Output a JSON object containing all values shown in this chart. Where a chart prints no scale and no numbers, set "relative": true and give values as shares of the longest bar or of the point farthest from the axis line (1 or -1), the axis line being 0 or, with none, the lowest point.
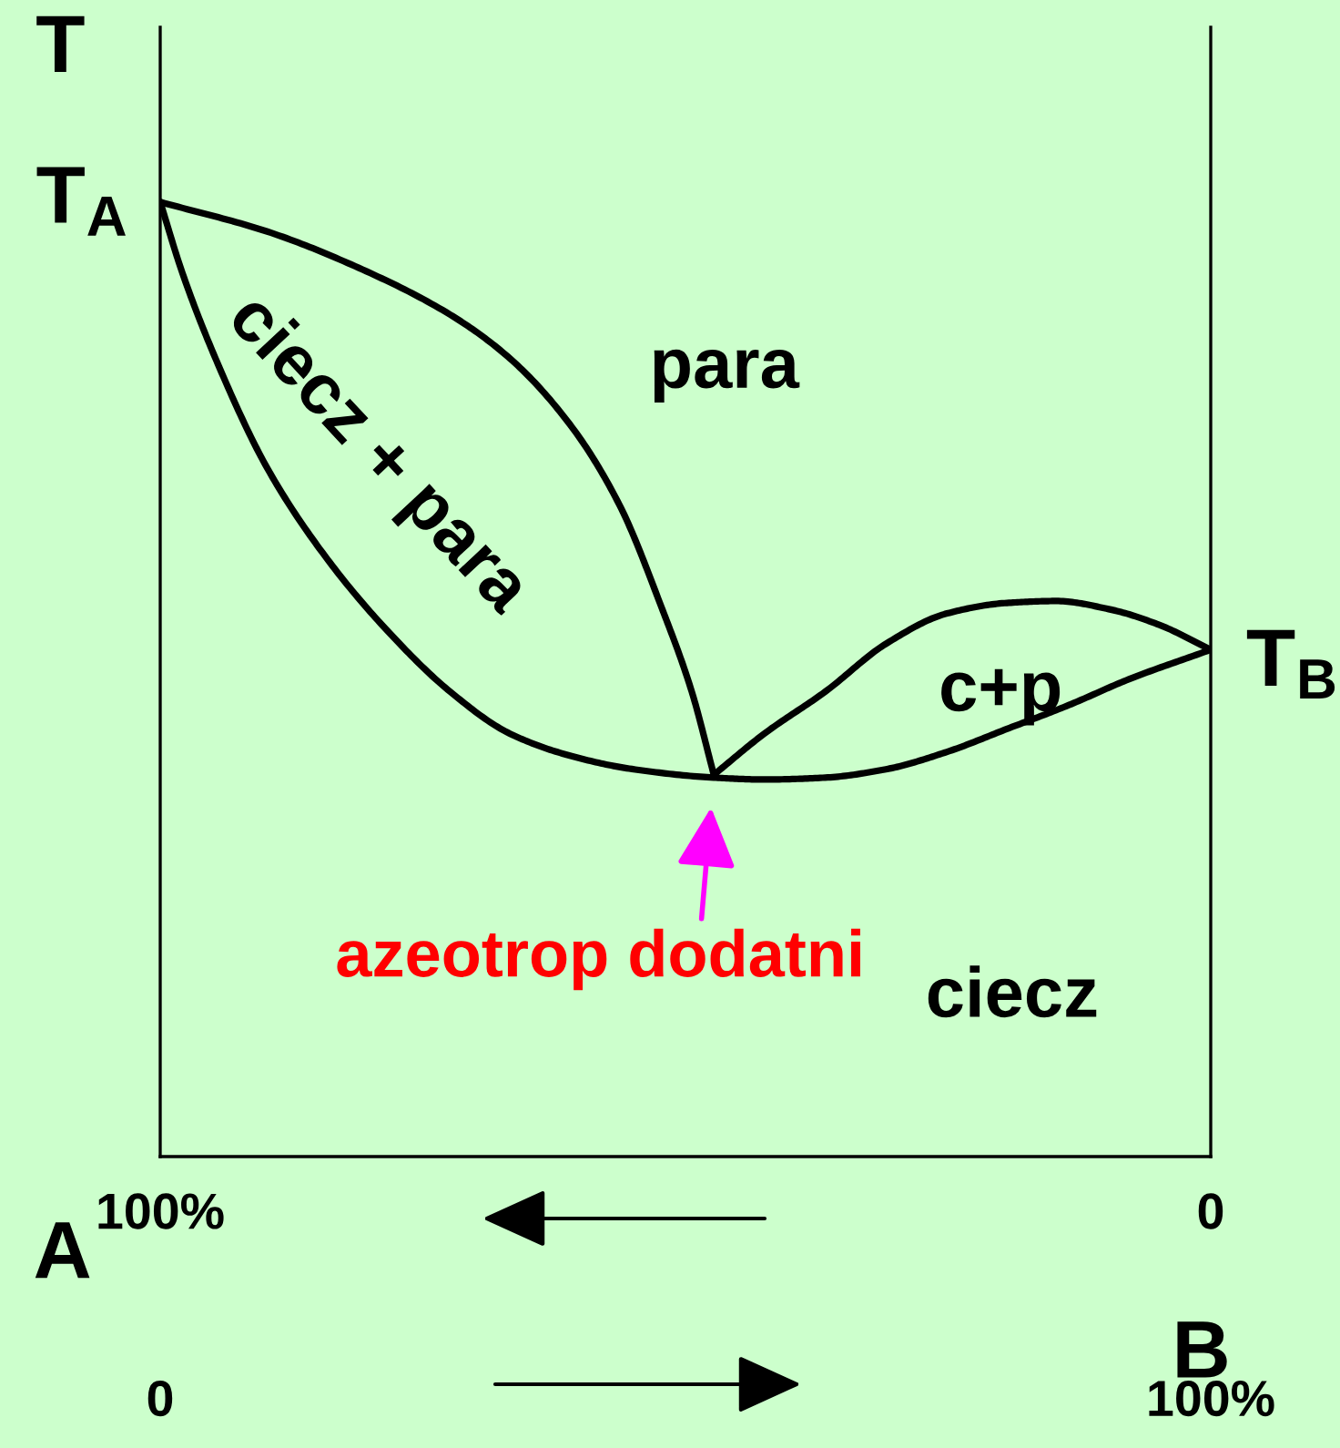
{
  "chart_data": {
    "type": "line",
    "relative": true,
    "ylabel": "T",
    "xlabel": "B",
    "x2label": "A",
    "xlim": [
      0,
      100
    ],
    "xticks": [
      0,
      {
        "value": 100,
        "label": "100%"
      }
    ],
    "x2lim": [
      100,
      0
    ],
    "x2ticks": [
      {
        "value": 100,
        "label": "100%"
      },
      0
    ],
    "series": [
      {
        "color": "#000000",
        "x": [
          0,
          10.2,
          18.9,
          27.6,
          33.3,
          39.0,
          43.7,
          47.7,
          50.6,
          52.7
        ],
        "values": [
          1.0,
          0.969,
          0.931,
          0.882,
          0.836,
          0.767,
          0.683,
          0.576,
          0.487,
          0.4
        ]
      },
      {
        "color": "#000000",
        "x": [
          52.7,
          57.5,
          63.3,
          69.2,
          74.9,
          80.6,
          85.3,
          90.5,
          95.1,
          100
        ],
        "values": [
          0.4,
          0.443,
          0.487,
          0.538,
          0.569,
          0.58,
          0.582,
          0.573,
          0.557,
          0.531
        ]
      },
      {
        "color": "#000000",
        "x": [
          0,
          2.1,
          5.5,
          10.2,
          15.9,
          21.7,
          27.6,
          33.3,
          39.0,
          44.9,
          52.7,
          57.5,
          63.3,
          69.2,
          74.9,
          80.6,
          86.5,
          92.2,
          100
        ],
        "values": [
          1.0,
          0.926,
          0.83,
          0.721,
          0.626,
          0.55,
          0.487,
          0.443,
          0.42,
          0.406,
          0.397,
          0.395,
          0.397,
          0.406,
          0.424,
          0.448,
          0.473,
          0.5,
          0.531
        ]
      }
    ],
    "annotations": [
      {
        "text": "T$_{A}$",
        "x": 0,
        "y": 1.0
      },
      {
        "text": "T$_{B}$",
        "x": 100,
        "y": 0.531
      },
      "para",
      "ciecz + para",
      "c+p",
      "ciecz",
      {
        "text": "azeotrop dodatni",
        "x": 52.7,
        "y": 0.4
      }
    ],
    "line_style": "solid",
    "marker": "none"
  }
}
